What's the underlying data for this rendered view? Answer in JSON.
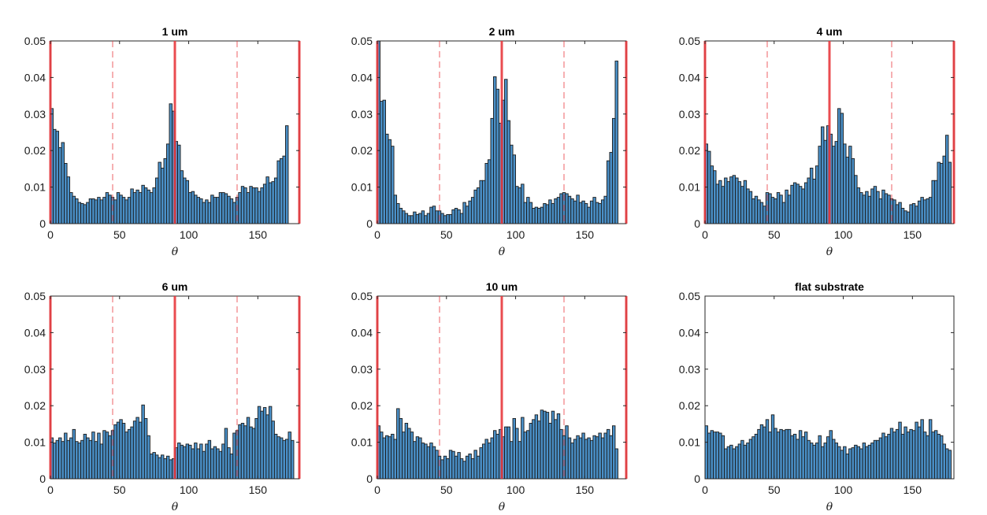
{
  "figure": {
    "background": "#ffffff"
  },
  "colors": {
    "bar_fill": "#4a90c8",
    "bar_edge": "#1a1a1a",
    "ref_line": "#e8383d",
    "axis": "#262626"
  },
  "chart_data": [
    {
      "type": "bar",
      "title": "1 um",
      "xlabel": "θ",
      "ylabel": "",
      "xlim": [
        0,
        180
      ],
      "ylim": [
        0,
        0.05
      ],
      "xticks": [
        "0",
        "50",
        "100",
        "150"
      ],
      "yticks": [
        "0",
        "0.01",
        "0.02",
        "0.03",
        "0.04",
        "0.05"
      ],
      "bin_width": 2,
      "ref_solid": [
        0,
        90,
        180
      ],
      "ref_dashed": [
        45,
        135
      ],
      "values": [
        0.0315,
        0.0258,
        0.0253,
        0.0208,
        0.0222,
        0.0165,
        0.0128,
        0.0085,
        0.0075,
        0.0068,
        0.0058,
        0.0055,
        0.0052,
        0.0058,
        0.0068,
        0.0068,
        0.0065,
        0.0072,
        0.0065,
        0.0072,
        0.0085,
        0.0078,
        0.0072,
        0.0065,
        0.0085,
        0.0078,
        0.0072,
        0.0065,
        0.0072,
        0.0095,
        0.0085,
        0.0092,
        0.0085,
        0.0105,
        0.0098,
        0.0092,
        0.0085,
        0.0098,
        0.0125,
        0.0168,
        0.0152,
        0.0178,
        0.0218,
        0.0328,
        0.0308,
        0.0225,
        0.0215,
        0.0145,
        0.0125,
        0.0118,
        0.0085,
        0.0088,
        0.0078,
        0.0072,
        0.0068,
        0.0058,
        0.0065,
        0.0058,
        0.0078,
        0.0072,
        0.0072,
        0.0085,
        0.0085,
        0.0082,
        0.0075,
        0.0068,
        0.0058,
        0.0072,
        0.0085,
        0.0102,
        0.0098,
        0.0085,
        0.0102,
        0.0098,
        0.0098,
        0.0088,
        0.0098,
        0.0108,
        0.0128,
        0.0112,
        0.0115,
        0.0125,
        0.0172,
        0.0178,
        0.0185,
        0.0268
      ]
    },
    {
      "type": "bar",
      "title": "2 um",
      "xlabel": "θ",
      "ylabel": "",
      "xlim": [
        0,
        180
      ],
      "ylim": [
        0,
        0.05
      ],
      "xticks": [
        "0",
        "50",
        "100",
        "150"
      ],
      "yticks": [
        "0",
        "0.01",
        "0.02",
        "0.03",
        "0.04",
        "0.05"
      ],
      "bin_width": 2,
      "ref_solid": [
        0,
        90,
        180
      ],
      "ref_dashed": [
        45,
        135
      ],
      "values": [
        0.05,
        0.0335,
        0.0338,
        0.0245,
        0.023,
        0.0212,
        0.0078,
        0.0055,
        0.0042,
        0.0035,
        0.0028,
        0.0022,
        0.0022,
        0.0032,
        0.0025,
        0.0028,
        0.0035,
        0.0022,
        0.0028,
        0.0045,
        0.0048,
        0.0035,
        0.0035,
        0.0028,
        0.0022,
        0.0025,
        0.0025,
        0.0038,
        0.0042,
        0.0038,
        0.0028,
        0.0058,
        0.0048,
        0.0062,
        0.0072,
        0.0092,
        0.0098,
        0.0118,
        0.0118,
        0.0165,
        0.0175,
        0.0288,
        0.0402,
        0.0368,
        0.0275,
        0.0338,
        0.0395,
        0.0282,
        0.0215,
        0.0188,
        0.0102,
        0.0098,
        0.0108,
        0.0058,
        0.0072,
        0.0058,
        0.0042,
        0.0045,
        0.0042,
        0.0045,
        0.0055,
        0.0052,
        0.0065,
        0.0055,
        0.0068,
        0.0072,
        0.0082,
        0.0085,
        0.0082,
        0.0075,
        0.0068,
        0.0062,
        0.0078,
        0.0058,
        0.0062,
        0.0055,
        0.0045,
        0.0062,
        0.0072,
        0.0058,
        0.0055,
        0.0065,
        0.0075,
        0.0172,
        0.0195,
        0.0288,
        0.0445
      ]
    },
    {
      "type": "bar",
      "title": "4 um",
      "xlabel": "θ",
      "ylabel": "",
      "xlim": [
        0,
        180
      ],
      "ylim": [
        0,
        0.05
      ],
      "xticks": [
        "0",
        "50",
        "100",
        "150"
      ],
      "yticks": [
        "0",
        "0.01",
        "0.02",
        "0.03",
        "0.04",
        "0.05"
      ],
      "bin_width": 2,
      "ref_solid": [
        0,
        90,
        180
      ],
      "ref_dashed": [
        45,
        135
      ],
      "values": [
        0.0218,
        0.0198,
        0.0158,
        0.0145,
        0.0108,
        0.0118,
        0.0102,
        0.0125,
        0.0115,
        0.0128,
        0.0132,
        0.0125,
        0.0115,
        0.0102,
        0.0118,
        0.0095,
        0.0088,
        0.0068,
        0.0075,
        0.0065,
        0.0058,
        0.0048,
        0.0085,
        0.0082,
        0.0072,
        0.0068,
        0.0085,
        0.0078,
        0.0058,
        0.0092,
        0.0078,
        0.0105,
        0.0112,
        0.0108,
        0.0102,
        0.0095,
        0.0112,
        0.0125,
        0.0152,
        0.0122,
        0.0158,
        0.0212,
        0.0265,
        0.0228,
        0.0268,
        0.0245,
        0.0212,
        0.0225,
        0.0315,
        0.0302,
        0.0218,
        0.0182,
        0.0212,
        0.0178,
        0.0132,
        0.0098,
        0.0085,
        0.0078,
        0.0088,
        0.0075,
        0.0095,
        0.0102,
        0.0088,
        0.0068,
        0.0092,
        0.0082,
        0.0078,
        0.0068,
        0.0065,
        0.0052,
        0.0058,
        0.0042,
        0.0035,
        0.0032,
        0.0052,
        0.0055,
        0.0048,
        0.0062,
        0.0072,
        0.0065,
        0.0068,
        0.0072,
        0.0118,
        0.0118,
        0.0168,
        0.0165,
        0.0185,
        0.0242,
        0.0168
      ]
    },
    {
      "type": "bar",
      "title": "6 um",
      "xlabel": "θ",
      "ylabel": "",
      "xlim": [
        0,
        180
      ],
      "ylim": [
        0,
        0.05
      ],
      "xticks": [
        "0",
        "50",
        "100",
        "150"
      ],
      "yticks": [
        "0",
        "0.01",
        "0.02",
        "0.03",
        "0.04",
        "0.05"
      ],
      "bin_width": 2,
      "ref_solid": [
        0,
        90,
        180
      ],
      "ref_dashed": [
        45,
        135
      ],
      "values": [
        0.0112,
        0.0098,
        0.0105,
        0.0112,
        0.0102,
        0.0125,
        0.0105,
        0.0112,
        0.0135,
        0.0102,
        0.0098,
        0.0105,
        0.0122,
        0.0112,
        0.0105,
        0.0128,
        0.0102,
        0.0125,
        0.0095,
        0.0132,
        0.0128,
        0.0118,
        0.0132,
        0.0148,
        0.0155,
        0.0162,
        0.0152,
        0.0128,
        0.0135,
        0.0142,
        0.0158,
        0.0168,
        0.0155,
        0.0202,
        0.0165,
        0.0118,
        0.0068,
        0.0072,
        0.0065,
        0.0058,
        0.0065,
        0.0055,
        0.0062,
        0.0052,
        0.0055,
        0.0085,
        0.0098,
        0.0092,
        0.0088,
        0.0095,
        0.0092,
        0.0082,
        0.0098,
        0.0082,
        0.0095,
        0.0075,
        0.0095,
        0.0105,
        0.0082,
        0.0088,
        0.0082,
        0.0075,
        0.0095,
        0.0138,
        0.0085,
        0.0068,
        0.0125,
        0.0132,
        0.0148,
        0.0152,
        0.0145,
        0.0168,
        0.0142,
        0.0138,
        0.0165,
        0.0198,
        0.0185,
        0.0195,
        0.0175,
        0.0198,
        0.0158,
        0.0122,
        0.0115,
        0.0112,
        0.0105,
        0.0108,
        0.0128,
        0.0105
      ]
    },
    {
      "type": "bar",
      "title": "10 um",
      "xlabel": "θ",
      "ylabel": "",
      "xlim": [
        0,
        180
      ],
      "ylim": [
        0,
        0.05
      ],
      "xticks": [
        "0",
        "50",
        "100",
        "150"
      ],
      "yticks": [
        "0",
        "0.01",
        "0.02",
        "0.03",
        "0.04",
        "0.05"
      ],
      "bin_width": 2,
      "ref_solid": [
        0,
        90,
        180
      ],
      "ref_dashed": [
        45,
        135
      ],
      "values": [
        0.0145,
        0.0128,
        0.0112,
        0.0118,
        0.0115,
        0.0122,
        0.0108,
        0.0192,
        0.0165,
        0.0128,
        0.0152,
        0.0138,
        0.0128,
        0.0102,
        0.0115,
        0.0112,
        0.0098,
        0.0095,
        0.0088,
        0.0098,
        0.0088,
        0.0078,
        0.0062,
        0.0052,
        0.0062,
        0.0055,
        0.0078,
        0.0075,
        0.0062,
        0.0072,
        0.0055,
        0.0048,
        0.0062,
        0.0068,
        0.0055,
        0.0078,
        0.0062,
        0.0085,
        0.0095,
        0.0108,
        0.0098,
        0.0112,
        0.0132,
        0.0122,
        0.0135,
        0.0115,
        0.0142,
        0.0142,
        0.0102,
        0.0165,
        0.0138,
        0.0102,
        0.0168,
        0.0128,
        0.0132,
        0.0152,
        0.0162,
        0.0175,
        0.0158,
        0.0188,
        0.0185,
        0.0182,
        0.0152,
        0.0185,
        0.0162,
        0.0178,
        0.0135,
        0.0118,
        0.0145,
        0.0112,
        0.0098,
        0.0108,
        0.0118,
        0.0112,
        0.0125,
        0.0108,
        0.0112,
        0.0105,
        0.0118,
        0.0115,
        0.0125,
        0.0112,
        0.0125,
        0.0135,
        0.0118,
        0.0145,
        0.0082
      ]
    },
    {
      "type": "bar",
      "title": "flat substrate",
      "xlabel": "θ",
      "ylabel": "",
      "xlim": [
        0,
        180
      ],
      "ylim": [
        0,
        0.05
      ],
      "xticks": [
        "0",
        "50",
        "100",
        "150"
      ],
      "yticks": [
        "0",
        "0.01",
        "0.02",
        "0.03",
        "0.04",
        "0.05"
      ],
      "bin_width": 2,
      "ref_solid": [],
      "ref_dashed": [],
      "values": [
        0.0145,
        0.0125,
        0.0132,
        0.0128,
        0.0128,
        0.0125,
        0.0118,
        0.0082,
        0.0088,
        0.0092,
        0.0082,
        0.0088,
        0.0095,
        0.0105,
        0.0092,
        0.0098,
        0.0108,
        0.0115,
        0.0122,
        0.0135,
        0.0148,
        0.0142,
        0.0162,
        0.0128,
        0.0175,
        0.0138,
        0.0128,
        0.0135,
        0.0132,
        0.0135,
        0.0135,
        0.0118,
        0.0122,
        0.0108,
        0.0132,
        0.0115,
        0.0128,
        0.0105,
        0.0098,
        0.0092,
        0.0098,
        0.0118,
        0.0088,
        0.0098,
        0.0115,
        0.0132,
        0.0108,
        0.0098,
        0.0088,
        0.0078,
        0.0088,
        0.0068,
        0.0082,
        0.0085,
        0.0092,
        0.0088,
        0.0082,
        0.0098,
        0.0088,
        0.0092,
        0.0098,
        0.0105,
        0.0105,
        0.0112,
        0.0125,
        0.0115,
        0.0122,
        0.0138,
        0.0128,
        0.0135,
        0.0155,
        0.0122,
        0.0142,
        0.0128,
        0.0135,
        0.0132,
        0.0155,
        0.0142,
        0.0162,
        0.0128,
        0.0118,
        0.0162,
        0.0128,
        0.0132,
        0.0122,
        0.0118,
        0.0095,
        0.0082,
        0.0078
      ]
    }
  ]
}
